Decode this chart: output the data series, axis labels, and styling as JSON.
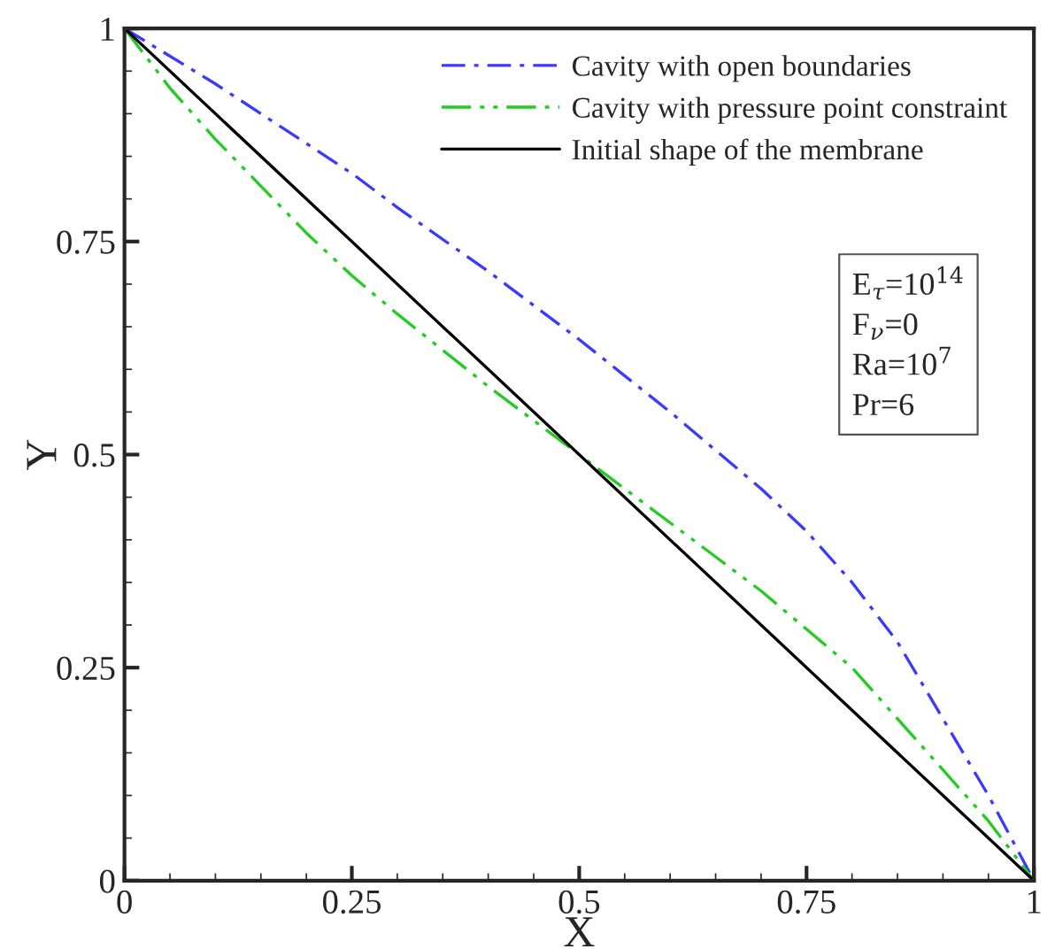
{
  "chart_data": {
    "type": "line",
    "xlabel": "X",
    "ylabel": "Y",
    "xlim": [
      0,
      1
    ],
    "ylim": [
      0,
      1
    ],
    "xticks": [
      0,
      {
        "value": 0.25,
        "label": "0.25"
      },
      {
        "value": 0.5,
        "label": "0.5"
      },
      {
        "value": 0.75,
        "label": "0.75"
      },
      1
    ],
    "yticks": [
      0,
      {
        "value": 0.25,
        "label": "0.25"
      },
      {
        "value": 0.5,
        "label": "0.5"
      },
      {
        "value": 0.75,
        "label": "0.75"
      },
      1
    ],
    "grid": false,
    "legend": "top right",
    "marker": "none",
    "series": [
      {
        "name": "Cavity with open boundaries",
        "color": "#3a3aff",
        "line_style": "dashdot",
        "x": [
          0,
          0.1,
          0.2,
          0.25,
          0.3,
          0.4,
          0.5,
          0.6,
          0.7,
          0.75,
          0.8,
          0.85,
          0.9,
          0.95,
          1
        ],
        "values": [
          1,
          0.935,
          0.865,
          0.83,
          0.79,
          0.715,
          0.635,
          0.55,
          0.46,
          0.41,
          0.35,
          0.28,
          0.19,
          0.1,
          0
        ]
      },
      {
        "name": "Cavity with pressure point constraint",
        "color": "#22cc22",
        "line_style": "dashdotdot",
        "x": [
          0,
          0.05,
          0.1,
          0.2,
          0.25,
          0.3,
          0.4,
          0.5,
          0.6,
          0.7,
          0.75,
          0.8,
          0.9,
          0.95,
          1
        ],
        "values": [
          1,
          0.93,
          0.87,
          0.76,
          0.71,
          0.665,
          0.58,
          0.5,
          0.42,
          0.34,
          0.295,
          0.25,
          0.13,
          0.07,
          0
        ]
      },
      {
        "name": "Initial shape of the membrane",
        "color": "#000000",
        "line_style": "solid",
        "x": [
          0,
          1
        ],
        "values": [
          1,
          0
        ]
      }
    ],
    "annotations": [
      "E$_{τ}$=10$^{14}$\nF$_{ν}$=0\nRa=10$^{7}$\nPr=6"
    ]
  }
}
